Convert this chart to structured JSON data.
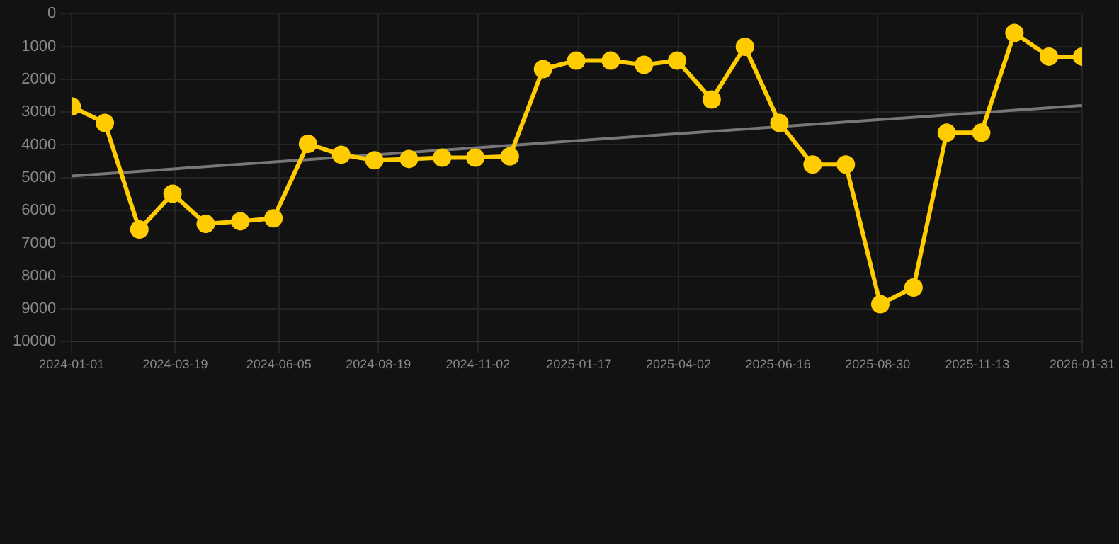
{
  "chart_data": {
    "type": "line",
    "x": [
      "2024-01-01",
      "2024-01-26",
      "2024-02-21",
      "2024-03-17",
      "2024-04-11",
      "2024-05-07",
      "2024-06-01",
      "2024-06-27",
      "2024-07-22",
      "2024-08-16",
      "2024-09-11",
      "2024-10-06",
      "2024-10-31",
      "2024-11-26",
      "2024-12-21",
      "2025-01-15",
      "2025-02-10",
      "2025-03-07",
      "2025-04-01",
      "2025-04-27",
      "2025-05-22",
      "2025-06-17",
      "2025-07-12",
      "2025-08-06",
      "2025-09-01",
      "2025-09-26",
      "2025-10-21",
      "2025-11-16",
      "2025-12-11",
      "2026-01-06",
      "2026-01-31"
    ],
    "series": [
      {
        "color": "#ffcc00",
        "marker": "circle",
        "values": [
          2830,
          3330,
          6580,
          5490,
          6410,
          6330,
          6240,
          3970,
          4300,
          4470,
          4430,
          4390,
          4390,
          4350,
          1690,
          1430,
          1430,
          1560,
          1430,
          2620,
          1010,
          3330,
          4600,
          4600,
          8860,
          8350,
          3630,
          3630,
          590,
          1310,
          1310
        ]
      },
      {
        "type": "line",
        "color": "#777777",
        "marker": "none",
        "x": [
          "2024-01-01",
          "2026-01-31"
        ],
        "values": [
          4950,
          2800
        ]
      }
    ],
    "ylim": [
      10000,
      0
    ],
    "yticks": [
      0,
      1000,
      2000,
      3000,
      4000,
      5000,
      6000,
      7000,
      8000,
      9000,
      10000
    ],
    "xlim": [
      "2024-01-01",
      "2026-01-31"
    ],
    "xticks": [
      "2024-01-01",
      "2024-03-19",
      "2024-06-05",
      "2024-08-19",
      "2024-11-02",
      "2025-01-17",
      "2025-04-02",
      "2025-06-16",
      "2025-08-30",
      "2025-11-13",
      "2026-01-31"
    ],
    "grid": true,
    "legend": false
  }
}
